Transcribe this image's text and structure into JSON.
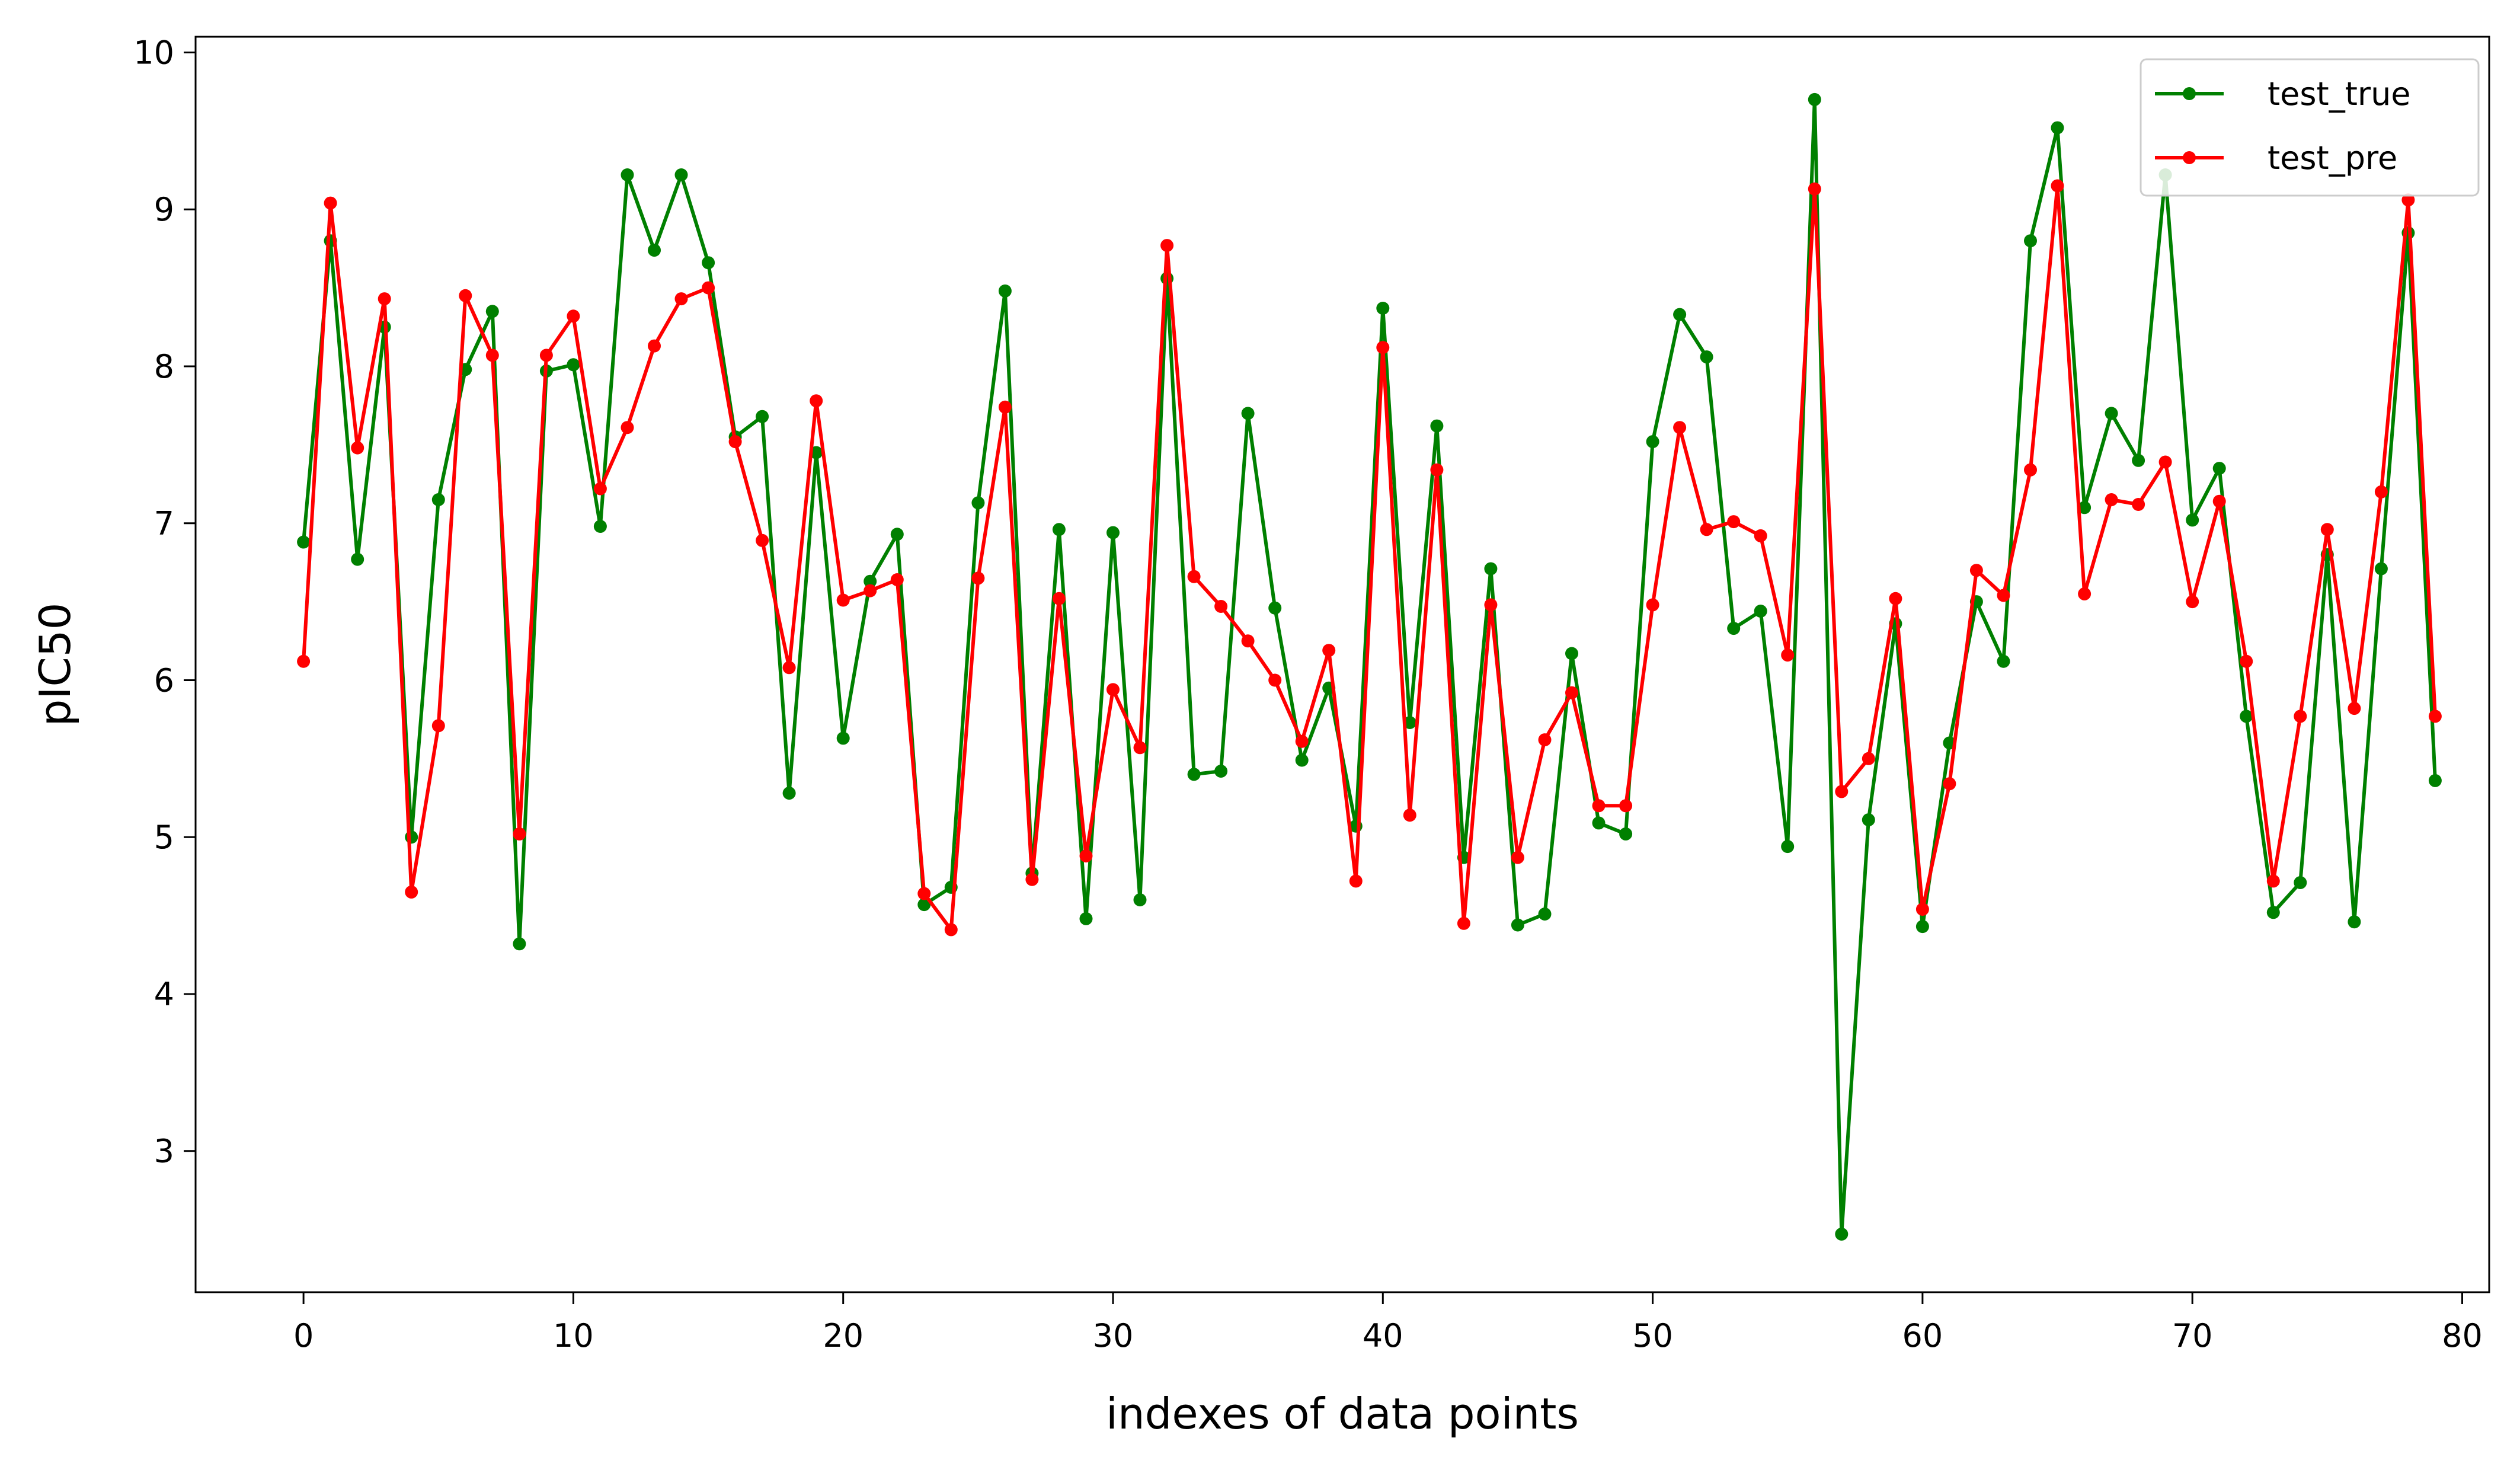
{
  "chart_data": {
    "type": "line",
    "title": "",
    "xlabel": "indexes of data points",
    "ylabel": "pIC50",
    "xlim": [
      -4,
      81
    ],
    "ylim": [
      2.1,
      10.1
    ],
    "xticks": [
      0,
      10,
      20,
      30,
      40,
      50,
      60,
      70,
      80
    ],
    "yticks": [
      3,
      4,
      5,
      6,
      7,
      8,
      9,
      10
    ],
    "grid": false,
    "legend_position": "top-right",
    "x": [
      0,
      1,
      2,
      3,
      4,
      5,
      6,
      7,
      8,
      9,
      10,
      11,
      12,
      13,
      14,
      15,
      16,
      17,
      18,
      19,
      20,
      21,
      22,
      23,
      24,
      25,
      26,
      27,
      28,
      29,
      30,
      31,
      32,
      33,
      34,
      35,
      36,
      37,
      38,
      39,
      40,
      41,
      42,
      43,
      44,
      45,
      46,
      47,
      48,
      49,
      50,
      51,
      52,
      53,
      54,
      55,
      56,
      57,
      58,
      59,
      60,
      61,
      62,
      63,
      64,
      65,
      66,
      67,
      68,
      69,
      70,
      71,
      72,
      73,
      74,
      75,
      76,
      77,
      78,
      79
    ],
    "series": [
      {
        "name": "test_true",
        "color": "#008000",
        "values": [
          6.88,
          8.8,
          6.77,
          8.25,
          5.0,
          7.15,
          7.98,
          8.35,
          4.32,
          7.97,
          8.01,
          6.98,
          9.22,
          8.74,
          9.22,
          8.66,
          7.55,
          7.68,
          5.28,
          7.45,
          5.63,
          6.63,
          6.93,
          4.57,
          4.68,
          7.13,
          8.48,
          4.77,
          6.96,
          4.48,
          6.94,
          4.6,
          8.56,
          5.4,
          5.42,
          7.7,
          6.46,
          5.49,
          5.95,
          5.07,
          8.37,
          5.73,
          7.62,
          4.87,
          6.71,
          4.44,
          4.51,
          6.17,
          5.09,
          5.02,
          7.52,
          8.33,
          8.06,
          6.33,
          6.44,
          4.94,
          9.7,
          2.47,
          5.11,
          6.36,
          4.43,
          5.6,
          6.5,
          6.12,
          8.8,
          9.52,
          7.1,
          7.7,
          7.4,
          9.22,
          7.02,
          7.35,
          5.77,
          4.52,
          4.71,
          6.8,
          4.46,
          6.71,
          8.85,
          5.36
        ]
      },
      {
        "name": "test_pre",
        "color": "#ff0000",
        "values": [
          6.12,
          9.04,
          7.48,
          8.43,
          4.65,
          5.71,
          8.45,
          8.07,
          5.02,
          8.07,
          8.32,
          7.22,
          7.61,
          8.13,
          8.43,
          8.5,
          7.52,
          6.89,
          6.08,
          7.78,
          6.51,
          6.57,
          6.64,
          4.64,
          4.41,
          6.65,
          7.74,
          4.73,
          6.52,
          4.88,
          5.94,
          5.57,
          8.77,
          6.66,
          6.47,
          6.25,
          6.0,
          5.61,
          6.19,
          4.72,
          8.12,
          5.14,
          7.34,
          4.45,
          6.48,
          4.87,
          5.62,
          5.92,
          5.2,
          5.2,
          6.48,
          7.61,
          6.96,
          7.01,
          6.92,
          6.16,
          9.13,
          5.29,
          5.5,
          6.52,
          4.54,
          5.34,
          6.7,
          6.54,
          7.34,
          9.15,
          6.55,
          7.15,
          7.12,
          7.39,
          6.5,
          7.14,
          6.12,
          4.72,
          5.77,
          6.96,
          5.82,
          7.2,
          9.06,
          5.77
        ]
      }
    ]
  }
}
